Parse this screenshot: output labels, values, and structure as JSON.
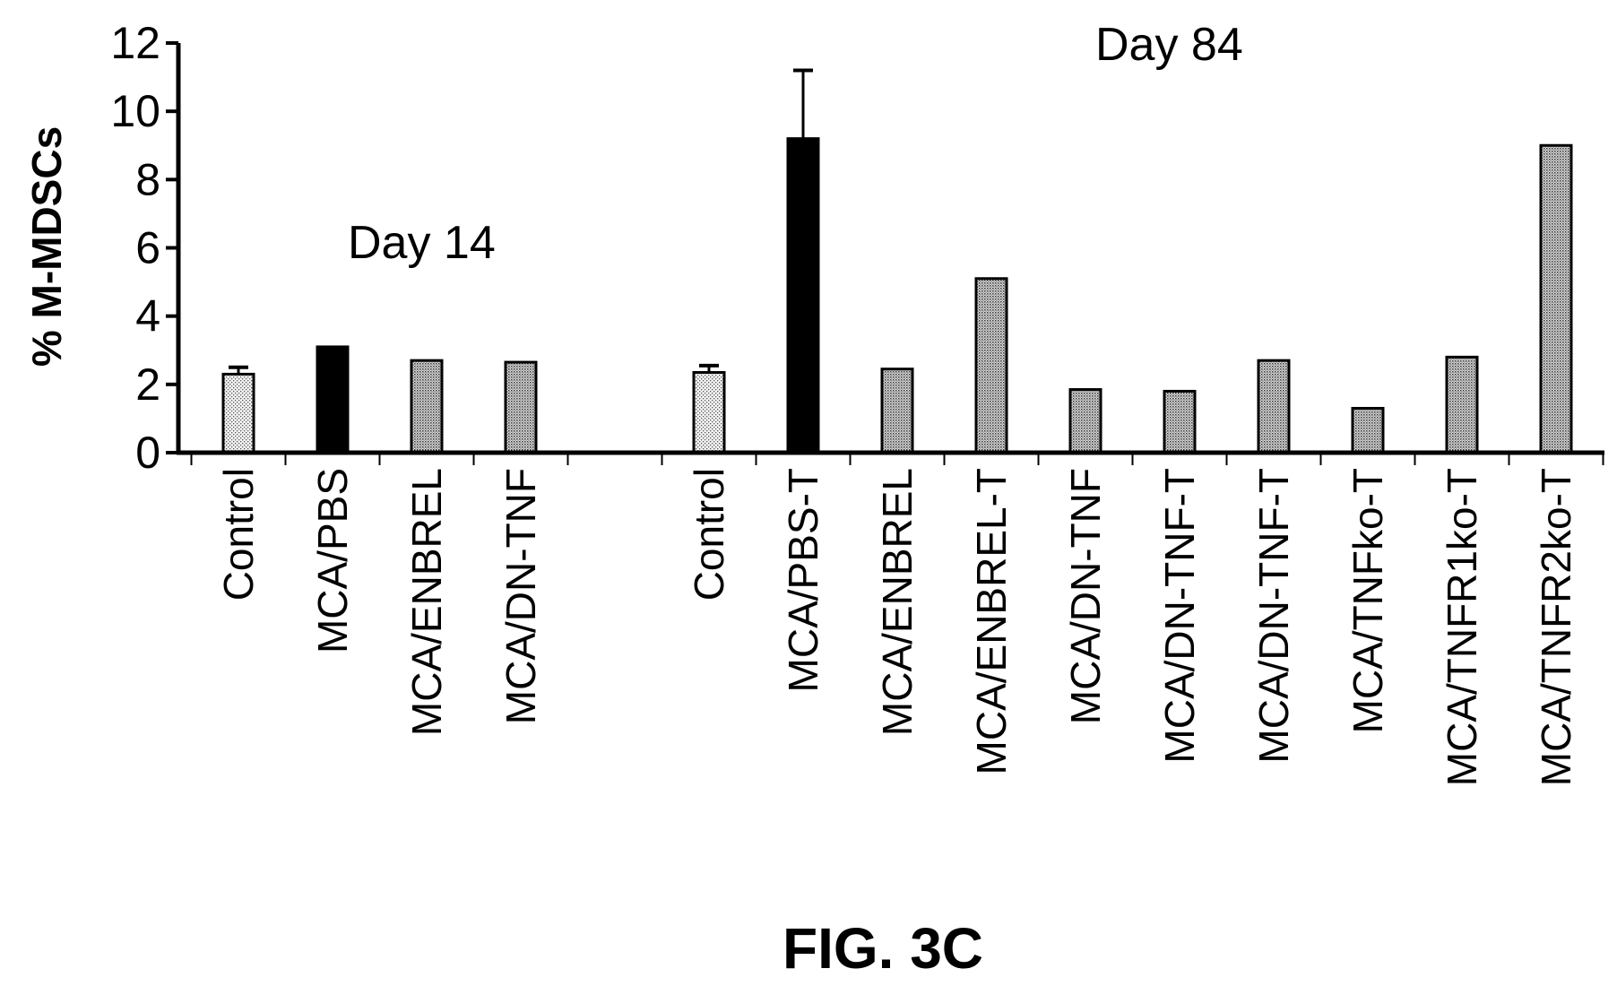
{
  "chart_data": {
    "type": "bar",
    "ylabel": "% M-MDSCs",
    "xlabel": "",
    "ylim": [
      0,
      12
    ],
    "yticks": [
      0,
      2,
      4,
      6,
      8,
      10,
      12
    ],
    "grid": false,
    "annotations": [
      "Day 14",
      "Day 84"
    ],
    "caption": "FIG. 3C",
    "categories": [
      "Control",
      "MCA/PBS",
      "MCA/ENBREL",
      "MCA/DN-TNF",
      "Control",
      "MCA/PBS-T",
      "MCA/ENBREL",
      "MCA/ENBREL-T",
      "MCA/DN-TNF",
      "MCA/DN-TNF-T",
      "MCA/DN-TNF-T",
      "MCA/TNFko-T",
      "MCA/TNFR1ko-T",
      "MCA/TNFR2ko-T"
    ],
    "values": [
      2.3,
      3.1,
      2.7,
      2.65,
      2.35,
      9.2,
      2.45,
      5.1,
      1.85,
      1.8,
      2.7,
      1.3,
      2.8,
      9.0
    ],
    "errors": [
      0.2,
      0,
      0,
      0,
      0.2,
      2.0,
      0,
      0,
      0,
      0,
      0,
      0,
      0,
      0
    ],
    "fills": [
      "light",
      "dark",
      "medium",
      "medium",
      "light",
      "dark",
      "medium",
      "medium",
      "medium",
      "medium",
      "medium",
      "medium",
      "medium",
      "medium"
    ],
    "colors": {
      "dark": "#000000",
      "light": "#dcdcdc",
      "medium": "#bcbcbc",
      "axis": "#000000"
    }
  }
}
